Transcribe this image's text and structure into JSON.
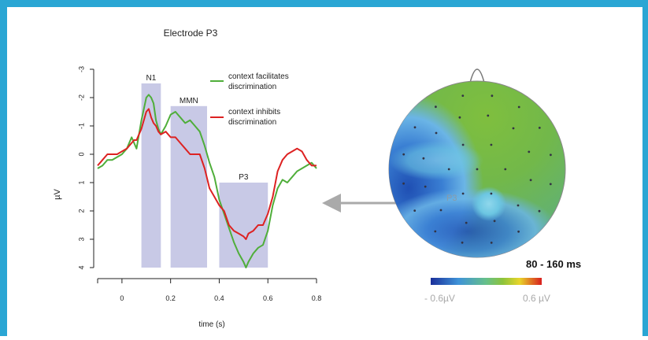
{
  "colors": {
    "frame": "#2aa6d4",
    "facilitates": "#4fae3a",
    "inhibits": "#dd2222",
    "window_fill": "#c8c9e6",
    "arrow": "#aaaaaa"
  },
  "chart_data": [
    {
      "type": "line",
      "title": "Electrode P3",
      "xlabel": "time (s)",
      "ylabel": "µV",
      "xlim": [
        -0.1,
        0.8
      ],
      "ylim": [
        4,
        -3
      ],
      "y_inverted": true,
      "x_ticks": [
        "0",
        "0.2",
        "0.4",
        "0.6",
        "0.8"
      ],
      "y_ticks": [
        "-3",
        "-2",
        "-1",
        "0",
        "1",
        "2",
        "3",
        "4"
      ],
      "windows": [
        {
          "label": "N1",
          "x0": 0.08,
          "x1": 0.16,
          "y_top": -2.5
        },
        {
          "label": "MMN",
          "x0": 0.2,
          "x1": 0.35,
          "y_top": -1.7
        },
        {
          "label": "P3",
          "x0": 0.4,
          "x1": 0.6,
          "y_top": 1.0
        }
      ],
      "legend": {
        "position": "top-right",
        "entries": [
          "context facilitates discrimination",
          "context inhibits discrimination"
        ]
      },
      "series": [
        {
          "name": "context facilitates discrimination",
          "color": "#4fae3a",
          "x": [
            -0.1,
            -0.08,
            -0.06,
            -0.04,
            -0.02,
            0,
            0.02,
            0.04,
            0.05,
            0.06,
            0.07,
            0.08,
            0.09,
            0.1,
            0.11,
            0.12,
            0.13,
            0.14,
            0.15,
            0.16,
            0.18,
            0.2,
            0.22,
            0.24,
            0.26,
            0.28,
            0.3,
            0.32,
            0.34,
            0.36,
            0.38,
            0.4,
            0.42,
            0.44,
            0.46,
            0.48,
            0.5,
            0.51,
            0.52,
            0.54,
            0.56,
            0.58,
            0.6,
            0.62,
            0.64,
            0.66,
            0.68,
            0.7,
            0.72,
            0.74,
            0.76,
            0.78,
            0.8
          ],
          "y": [
            0.5,
            0.4,
            0.2,
            0.2,
            0.1,
            0.0,
            -0.2,
            -0.6,
            -0.4,
            -0.2,
            -0.7,
            -1.2,
            -1.6,
            -2.0,
            -2.1,
            -2.0,
            -1.8,
            -1.2,
            -0.9,
            -0.7,
            -1.0,
            -1.4,
            -1.5,
            -1.3,
            -1.1,
            -1.2,
            -1.0,
            -0.8,
            -0.3,
            0.3,
            0.8,
            1.6,
            2.1,
            2.6,
            3.1,
            3.5,
            3.8,
            4.0,
            3.8,
            3.5,
            3.3,
            3.2,
            2.7,
            1.8,
            1.2,
            0.9,
            1.0,
            0.8,
            0.6,
            0.5,
            0.4,
            0.3,
            0.5
          ]
        },
        {
          "name": "context inhibits discrimination",
          "color": "#dd2222",
          "x": [
            -0.1,
            -0.08,
            -0.06,
            -0.04,
            -0.02,
            0,
            0.02,
            0.04,
            0.05,
            0.06,
            0.07,
            0.08,
            0.09,
            0.1,
            0.11,
            0.12,
            0.13,
            0.14,
            0.15,
            0.16,
            0.18,
            0.2,
            0.22,
            0.24,
            0.26,
            0.28,
            0.3,
            0.32,
            0.34,
            0.36,
            0.38,
            0.4,
            0.42,
            0.44,
            0.46,
            0.48,
            0.5,
            0.51,
            0.52,
            0.54,
            0.56,
            0.58,
            0.6,
            0.62,
            0.64,
            0.66,
            0.68,
            0.7,
            0.72,
            0.74,
            0.76,
            0.78,
            0.8
          ],
          "y": [
            0.4,
            0.2,
            0.0,
            0.0,
            0.0,
            -0.1,
            -0.2,
            -0.4,
            -0.5,
            -0.5,
            -0.7,
            -0.9,
            -1.2,
            -1.5,
            -1.6,
            -1.3,
            -1.1,
            -1.0,
            -0.8,
            -0.7,
            -0.8,
            -0.6,
            -0.6,
            -0.4,
            -0.2,
            0.0,
            0.0,
            0.0,
            0.5,
            1.2,
            1.5,
            1.8,
            2.0,
            2.5,
            2.7,
            2.8,
            2.9,
            3.0,
            2.8,
            2.7,
            2.5,
            2.5,
            2.1,
            1.5,
            0.6,
            0.2,
            0.0,
            -0.1,
            -0.2,
            -0.1,
            0.2,
            0.4,
            0.4
          ]
        }
      ]
    },
    {
      "type": "heatmap",
      "label": "80 - 160 ms",
      "electrode_label": "P3",
      "colorbar": {
        "min_label": "- 0.6µV",
        "max_label": "0.6 µV"
      }
    }
  ]
}
